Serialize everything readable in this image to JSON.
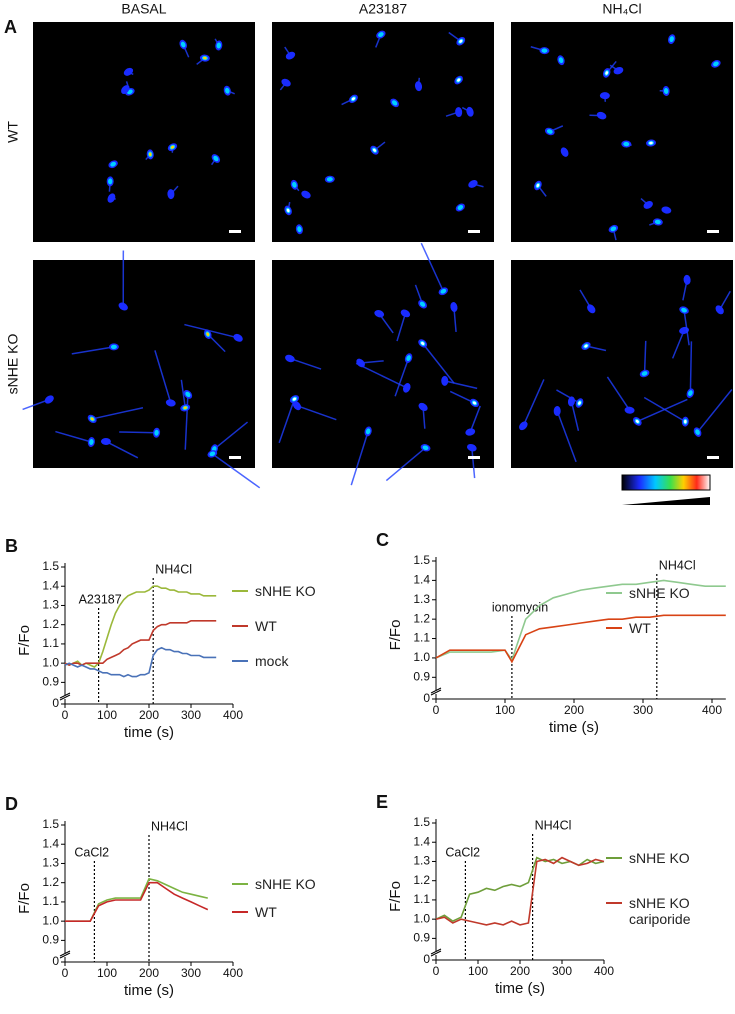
{
  "figure_a": {
    "panel": "A",
    "columns": [
      "BASAL",
      "A23187",
      "NH₄Cl"
    ],
    "rows": [
      "WT",
      "sNHE KO"
    ]
  },
  "chart_data": [
    {
      "type": "line",
      "panel": "B",
      "xlabel": "time (s)",
      "ylabel": "F/Fo",
      "xlim": [
        0,
        400
      ],
      "xticks": [
        0,
        100,
        200,
        300,
        400
      ],
      "ylim": [
        0,
        1.5
      ],
      "axis_break": [
        0,
        0.85
      ],
      "yticks": [
        0,
        0.9,
        {
          "value": 1,
          "label": "1.0"
        },
        1.1,
        1.2,
        1.3,
        1.4,
        1.5
      ],
      "annotations": [
        {
          "text": "A23187",
          "x": 80
        },
        {
          "text": "NH4Cl",
          "x": 210
        }
      ],
      "x": [
        0,
        10,
        20,
        30,
        40,
        50,
        60,
        70,
        80,
        90,
        100,
        110,
        120,
        130,
        140,
        150,
        160,
        170,
        180,
        190,
        200,
        210,
        220,
        230,
        240,
        250,
        260,
        270,
        280,
        290,
        300,
        310,
        320,
        330,
        340,
        350,
        360
      ],
      "series": [
        {
          "name": "sNHE KO",
          "color": "#9bb83a",
          "values": [
            1.0,
            0.99,
            1.0,
            1.01,
            0.99,
            1.0,
            0.99,
            0.98,
            1.0,
            1.06,
            1.13,
            1.2,
            1.26,
            1.3,
            1.33,
            1.35,
            1.36,
            1.37,
            1.37,
            1.37,
            1.38,
            1.4,
            1.4,
            1.39,
            1.39,
            1.38,
            1.38,
            1.37,
            1.37,
            1.37,
            1.36,
            1.36,
            1.36,
            1.35,
            1.35,
            1.35,
            1.35
          ]
        },
        {
          "name": "WT",
          "color": "#c0392b",
          "values": [
            1.0,
            0.99,
            1.0,
            1.0,
            0.99,
            1.0,
            1.0,
            1.0,
            1.0,
            1.0,
            1.02,
            1.03,
            1.04,
            1.05,
            1.07,
            1.08,
            1.1,
            1.11,
            1.12,
            1.12,
            1.12,
            1.17,
            1.19,
            1.2,
            1.2,
            1.21,
            1.21,
            1.21,
            1.21,
            1.21,
            1.22,
            1.22,
            1.22,
            1.22,
            1.22,
            1.22,
            1.22
          ]
        },
        {
          "name": "mock",
          "color": "#4a72b8",
          "values": [
            0.99,
            1.0,
            0.99,
            0.98,
            0.99,
            0.98,
            0.97,
            0.97,
            0.96,
            0.95,
            0.95,
            0.94,
            0.94,
            0.94,
            0.93,
            0.94,
            0.93,
            0.93,
            0.94,
            0.94,
            0.95,
            1.04,
            1.07,
            1.08,
            1.07,
            1.07,
            1.06,
            1.06,
            1.05,
            1.05,
            1.04,
            1.04,
            1.04,
            1.03,
            1.03,
            1.03,
            1.03
          ]
        }
      ]
    },
    {
      "type": "line",
      "panel": "C",
      "xlabel": "time (s)",
      "ylabel": "F/Fo",
      "xlim": [
        0,
        420
      ],
      "xticks": [
        0,
        100,
        200,
        300,
        400
      ],
      "ylim": [
        0,
        1.5
      ],
      "axis_break": [
        0,
        0.85
      ],
      "yticks": [
        0,
        0.9,
        {
          "value": 1,
          "label": "1.0"
        },
        1.1,
        1.2,
        1.3,
        1.4,
        1.5
      ],
      "annotations": [
        {
          "text": "ionomycin",
          "x": 110
        },
        {
          "text": "NH4Cl",
          "x": 320
        }
      ],
      "x": [
        0,
        20,
        40,
        60,
        80,
        100,
        110,
        130,
        150,
        170,
        190,
        210,
        230,
        250,
        270,
        290,
        310,
        330,
        350,
        370,
        390,
        420
      ],
      "series": [
        {
          "name": "sNHE KO",
          "color": "#8fc98f",
          "values": [
            1.0,
            1.03,
            1.03,
            1.03,
            1.03,
            1.04,
            0.99,
            1.2,
            1.27,
            1.31,
            1.33,
            1.35,
            1.36,
            1.37,
            1.38,
            1.38,
            1.39,
            1.4,
            1.39,
            1.38,
            1.37,
            1.37
          ]
        },
        {
          "name": "WT",
          "color": "#d84315",
          "values": [
            1.0,
            1.04,
            1.04,
            1.04,
            1.04,
            1.04,
            0.98,
            1.12,
            1.15,
            1.16,
            1.17,
            1.18,
            1.19,
            1.2,
            1.2,
            1.21,
            1.21,
            1.22,
            1.22,
            1.22,
            1.22,
            1.22
          ]
        }
      ]
    },
    {
      "type": "line",
      "panel": "D",
      "xlabel": "time (s)",
      "ylabel": "F/Fo",
      "xlim": [
        0,
        400
      ],
      "xticks": [
        0,
        100,
        200,
        300,
        400
      ],
      "ylim": [
        0,
        1.5
      ],
      "axis_break": [
        0,
        0.85
      ],
      "yticks": [
        0,
        0.9,
        {
          "value": 1,
          "label": "1.0"
        },
        1.1,
        1.2,
        1.3,
        1.4,
        1.5
      ],
      "annotations": [
        {
          "text": "CaCl2",
          "x": 70
        },
        {
          "text": "NH4Cl",
          "x": 200
        }
      ],
      "x": [
        0,
        20,
        40,
        60,
        80,
        100,
        120,
        140,
        160,
        180,
        200,
        220,
        240,
        260,
        280,
        300,
        320,
        340
      ],
      "series": [
        {
          "name": "sNHE KO",
          "color": "#7cb342",
          "values": [
            1.0,
            1.0,
            1.0,
            1.0,
            1.09,
            1.11,
            1.12,
            1.12,
            1.12,
            1.12,
            1.22,
            1.21,
            1.19,
            1.17,
            1.15,
            1.14,
            1.13,
            1.12
          ]
        },
        {
          "name": "WT",
          "color": "#c62828",
          "values": [
            1.0,
            1.0,
            1.0,
            1.0,
            1.08,
            1.1,
            1.11,
            1.11,
            1.11,
            1.11,
            1.2,
            1.2,
            1.17,
            1.14,
            1.12,
            1.1,
            1.08,
            1.06
          ]
        }
      ]
    },
    {
      "type": "line",
      "panel": "E",
      "xlabel": "time (s)",
      "ylabel": "F/Fo",
      "xlim": [
        0,
        400
      ],
      "xticks": [
        0,
        100,
        200,
        300,
        400
      ],
      "ylim": [
        0,
        1.5
      ],
      "axis_break": [
        0,
        0.85
      ],
      "yticks": [
        0,
        0.9,
        {
          "value": 1,
          "label": "1.0"
        },
        1.1,
        1.2,
        1.3,
        1.4,
        1.5
      ],
      "annotations": [
        {
          "text": "CaCl2",
          "x": 70
        },
        {
          "text": "NH4Cl",
          "x": 230
        }
      ],
      "x": [
        0,
        20,
        40,
        60,
        80,
        100,
        120,
        140,
        160,
        180,
        200,
        220,
        240,
        260,
        280,
        300,
        320,
        340,
        360,
        380,
        400
      ],
      "series": [
        {
          "name": "sNHE KO",
          "color": "#6e9e3a",
          "values": [
            1.0,
            1.02,
            0.99,
            1.01,
            1.13,
            1.14,
            1.16,
            1.15,
            1.17,
            1.18,
            1.17,
            1.19,
            1.32,
            1.3,
            1.31,
            1.29,
            1.3,
            1.28,
            1.31,
            1.29,
            1.3
          ]
        },
        {
          "name": "sNHE KO cariporide",
          "color": "#c0392b",
          "values": [
            1.0,
            1.01,
            0.98,
            1.0,
            0.99,
            0.98,
            0.97,
            0.98,
            0.97,
            0.99,
            0.97,
            0.98,
            1.3,
            1.31,
            1.29,
            1.32,
            1.3,
            1.28,
            1.29,
            1.31,
            1.3
          ]
        }
      ]
    }
  ]
}
